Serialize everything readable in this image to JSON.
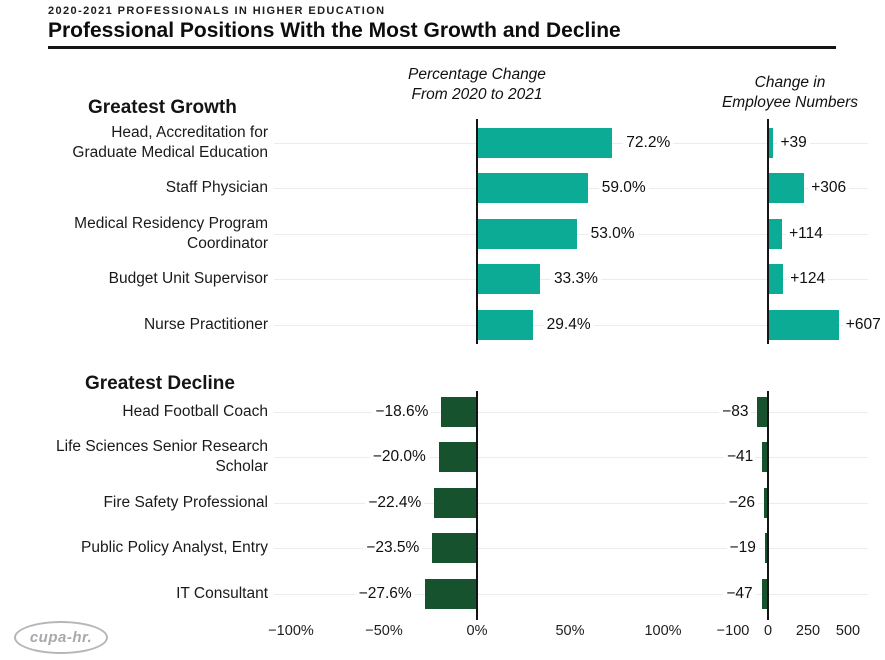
{
  "header": {
    "eyebrow": "2020-2021 PROFESSIONALS IN HIGHER EDUCATION",
    "title": "Professional Positions With the Most Growth and Decline"
  },
  "columns": {
    "pct": "Percentage Change\nFrom 2020 to 2021",
    "num": "Change in\nEmployee Numbers"
  },
  "logo": {
    "text": "cupa-hr."
  },
  "chart_data": {
    "type": "bar",
    "orientation": "horizontal",
    "title": "Professional Positions With the Most Growth and Decline",
    "subtitle": "2020-2021 PROFESSIONALS IN HIGHER EDUCATION",
    "panels": [
      "Percentage Change From 2020 to 2021",
      "Change in Employee Numbers"
    ],
    "colors": {
      "growth": "#0cab95",
      "decline": "#15522d"
    },
    "groups": [
      {
        "key": "growth",
        "heading": "Greatest Growth",
        "rows": [
          {
            "label": "Head, Accreditation for\nGraduate Medical Education",
            "pct": 72.2,
            "pct_label": "72.2%",
            "num": 39,
            "num_label": "+39"
          },
          {
            "label": "Staff Physician",
            "pct": 59.0,
            "pct_label": "59.0%",
            "num": 306,
            "num_label": "+306"
          },
          {
            "label": "Medical Residency Program\nCoordinator",
            "pct": 53.0,
            "pct_label": "53.0%",
            "num": 114,
            "num_label": "+114"
          },
          {
            "label": "Budget Unit Supervisor",
            "pct": 33.3,
            "pct_label": "33.3%",
            "num": 124,
            "num_label": "+124"
          },
          {
            "label": "Nurse Practitioner",
            "pct": 29.4,
            "pct_label": "29.4%",
            "num": 607,
            "num_label": "+607"
          }
        ]
      },
      {
        "key": "decline",
        "heading": "Greatest Decline",
        "rows": [
          {
            "label": "Head Football Coach",
            "pct": -18.6,
            "pct_label": "−18.6%",
            "num": -83,
            "num_label": "−83"
          },
          {
            "label": "Life Sciences Senior Research\nScholar",
            "pct": -20.0,
            "pct_label": "−20.0%",
            "num": -41,
            "num_label": "−41"
          },
          {
            "label": "Fire Safety Professional",
            "pct": -22.4,
            "pct_label": "−22.4%",
            "num": -26,
            "num_label": "−26"
          },
          {
            "label": "Public Policy Analyst, Entry",
            "pct": -23.5,
            "pct_label": "−23.5%",
            "num": -19,
            "num_label": "−19"
          },
          {
            "label": "IT Consultant",
            "pct": -27.6,
            "pct_label": "−27.6%",
            "num": -47,
            "num_label": "−47"
          }
        ]
      }
    ],
    "pct_axis": {
      "range": [
        -100,
        100
      ],
      "ticks": [
        {
          "v": -100,
          "label": "−100%"
        },
        {
          "v": -50,
          "label": "−50%"
        },
        {
          "v": 0,
          "label": "0%"
        },
        {
          "v": 50,
          "label": "50%"
        },
        {
          "v": 100,
          "label": "100%"
        }
      ]
    },
    "num_axis": {
      "ticks": [
        {
          "v": -100,
          "label": "−100"
        },
        {
          "v": 0,
          "label": "0"
        },
        {
          "v": 250,
          "label": "250"
        },
        {
          "v": 500,
          "label": "500"
        }
      ]
    }
  }
}
